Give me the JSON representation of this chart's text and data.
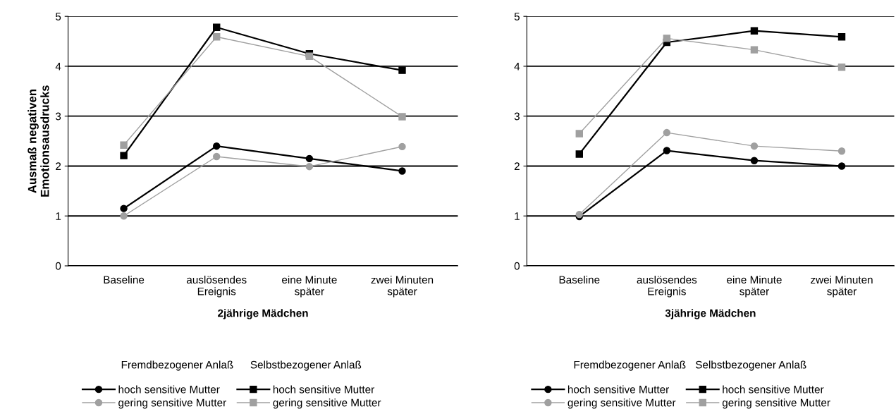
{
  "chart_data": [
    {
      "type": "line",
      "xlabel": "2jährige Mädchen",
      "ylabel": "Ausmaß negativen\nEmotionsausdrucks",
      "categories": [
        "Baseline",
        "auslösendes\nEreignis",
        "eine Minute\nspäter",
        "zwei Minuten\nspäter"
      ],
      "ylim": [
        0,
        5
      ],
      "yticks": [
        0,
        1,
        2,
        3,
        4,
        5
      ],
      "grid": "y",
      "legend": "bottom",
      "annotations": [
        "Fremdbezogener Anlaß",
        "Selbstbezogener Anlaß"
      ],
      "series": [
        {
          "name": "hoch sensitive Mutter",
          "color": "#000000",
          "marker": "circle",
          "values": [
            1.15,
            2.4,
            2.15,
            1.9
          ]
        },
        {
          "name": "gering sensitive Mutter",
          "color": "#a0a0a0",
          "marker": "circle",
          "values": [
            1.0,
            2.19,
            1.99,
            2.39
          ]
        },
        {
          "name": "hoch sensitive Mutter",
          "color": "#000000",
          "marker": "square",
          "values": [
            2.21,
            4.78,
            4.25,
            3.92
          ]
        },
        {
          "name": "gering sensitive Mutter",
          "color": "#a0a0a0",
          "marker": "square",
          "values": [
            2.42,
            4.59,
            4.2,
            2.99
          ]
        }
      ]
    },
    {
      "type": "line",
      "xlabel": "3jährige Mädchen",
      "categories": [
        "Baseline",
        "auslösendes\nEreignis",
        "eine Minute\nspäter",
        "zwei Minuten\nspäter"
      ],
      "ylim": [
        0,
        5
      ],
      "yticks": [
        0,
        1,
        2,
        3,
        4,
        5
      ],
      "grid": "y",
      "legend": "bottom",
      "annotations": [
        "Fremdbezogener Anlaß",
        "Selbstbezogener Anlaß"
      ],
      "series": [
        {
          "name": "hoch sensitive Mutter",
          "color": "#000000",
          "marker": "circle",
          "values": [
            0.99,
            2.31,
            2.11,
            2.0
          ]
        },
        {
          "name": "gering sensitive Mutter",
          "color": "#a0a0a0",
          "marker": "circle",
          "values": [
            1.03,
            2.67,
            2.4,
            2.3
          ]
        },
        {
          "name": "hoch sensitive Mutter",
          "color": "#000000",
          "marker": "square",
          "values": [
            2.24,
            4.48,
            4.71,
            4.59
          ]
        },
        {
          "name": "gering sensitive Mutter",
          "color": "#a0a0a0",
          "marker": "square",
          "values": [
            2.65,
            4.56,
            4.33,
            3.98
          ]
        }
      ]
    }
  ]
}
